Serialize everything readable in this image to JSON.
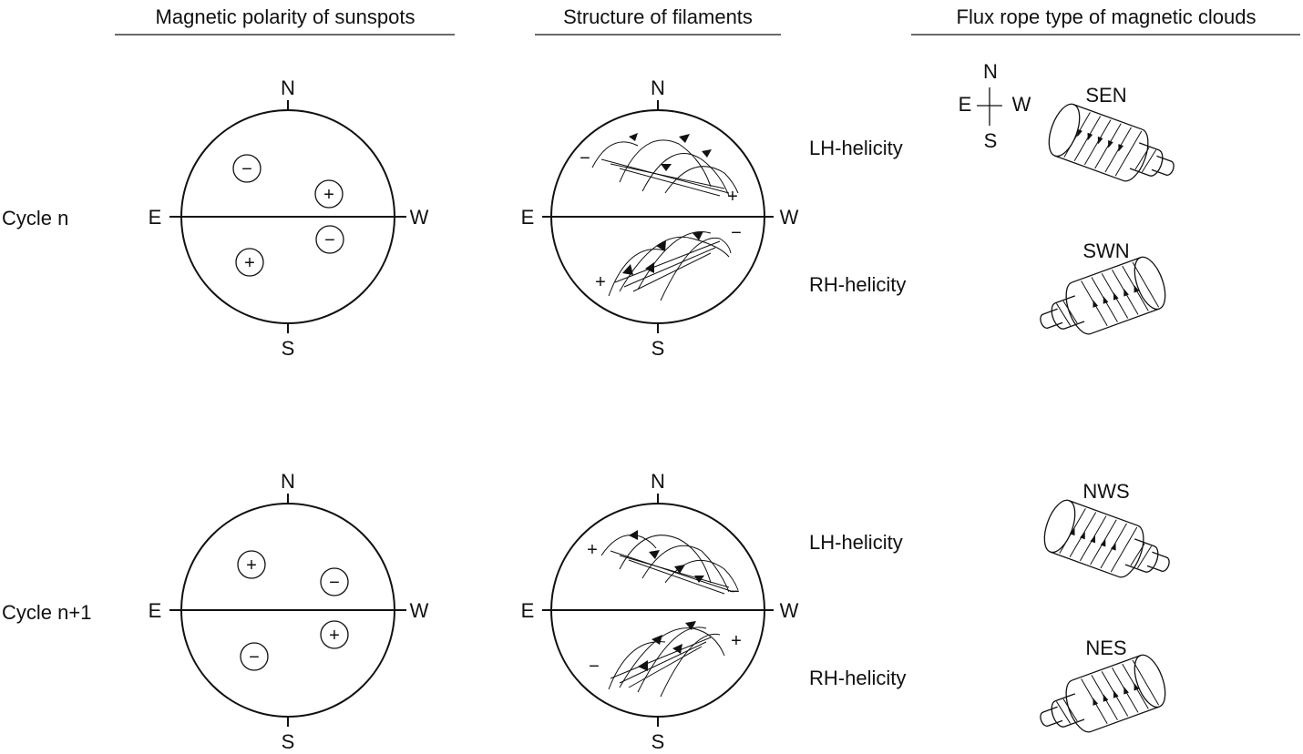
{
  "headers": {
    "sunspots": "Magnetic polarity of sunspots",
    "filaments": "Structure of filaments",
    "clouds": "Flux rope type of magnetic clouds"
  },
  "cycles": [
    {
      "label": "Cycle n",
      "sunspots": {
        "ne": "−",
        "nw": "+",
        "se": "+",
        "sw": "−"
      },
      "filaments": {
        "north": {
          "east_sign": "−",
          "west_sign": "+",
          "helicity": "LH-helicity"
        },
        "south": {
          "east_sign": "+",
          "west_sign": "−",
          "helicity": "RH-helicity"
        }
      },
      "ropes": [
        "SEN",
        "SWN"
      ]
    },
    {
      "label": "Cycle n+1",
      "sunspots": {
        "ne": "+",
        "nw": "−",
        "se": "−",
        "sw": "+"
      },
      "filaments": {
        "north": {
          "east_sign": "+",
          "west_sign": "−",
          "helicity": "LH-helicity"
        },
        "south": {
          "east_sign": "−",
          "west_sign": "+",
          "helicity": "RH-helicity"
        }
      },
      "ropes": [
        "NWS",
        "NES"
      ]
    }
  ],
  "compass": {
    "n": "N",
    "s": "S",
    "e": "E",
    "w": "W"
  },
  "legend_compass": {
    "n": "N",
    "s": "S",
    "e": "E",
    "w": "W"
  }
}
